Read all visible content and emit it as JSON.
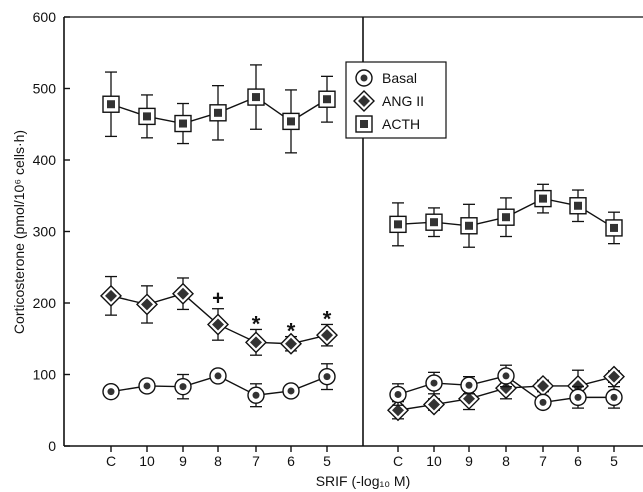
{
  "chart_data": {
    "type": "line",
    "ylabel": "Corticosterone (pmol/10⁶ cells·h)",
    "xlabel": "SRIF (-log₁₀ M)",
    "ylim": [
      0,
      600
    ],
    "yticks": [
      0,
      100,
      200,
      300,
      400,
      500,
      600
    ],
    "categories": [
      "C",
      "10",
      "9",
      "8",
      "7",
      "6",
      "5"
    ],
    "legend": {
      "placement": "top-center",
      "entries": [
        "Basal",
        "ANG II",
        "ACTH"
      ]
    },
    "panels": [
      {
        "name": "left",
        "series": [
          {
            "name": "ACTH",
            "marker": "square",
            "values": [
              478,
              461,
              451,
              466,
              488,
              454,
              485
            ],
            "errors": [
              45,
              30,
              28,
              38,
              45,
              44,
              32
            ]
          },
          {
            "name": "ANG II",
            "marker": "diamond",
            "values": [
              210,
              198,
              213,
              170,
              145,
              143,
              155
            ],
            "errors": [
              27,
              26,
              22,
              22,
              18,
              10,
              15
            ],
            "annotations": [
              "",
              "",
              "",
              "+",
              "*",
              "*",
              "*"
            ]
          },
          {
            "name": "Basal",
            "marker": "circle",
            "values": [
              76,
              84,
              83,
              98,
              71,
              77,
              97
            ],
            "errors": [
              7,
              8,
              17,
              6,
              16,
              8,
              18
            ]
          }
        ]
      },
      {
        "name": "right",
        "series": [
          {
            "name": "ACTH",
            "marker": "square",
            "values": [
              310,
              313,
              308,
              320,
              346,
              336,
              305
            ],
            "errors": [
              30,
              20,
              30,
              27,
              20,
              22,
              22
            ]
          },
          {
            "name": "ANG II",
            "marker": "diamond",
            "values": [
              50,
              58,
              66,
              81,
              84,
              84,
              97
            ],
            "errors": [
              12,
              8,
              15,
              15,
              8,
              22,
              8
            ]
          },
          {
            "name": "Basal",
            "marker": "circle",
            "values": [
              72,
              88,
              85,
              98,
              61,
              68,
              68
            ],
            "errors": [
              15,
              15,
              12,
              15,
              8,
              15,
              15
            ]
          }
        ]
      }
    ]
  }
}
